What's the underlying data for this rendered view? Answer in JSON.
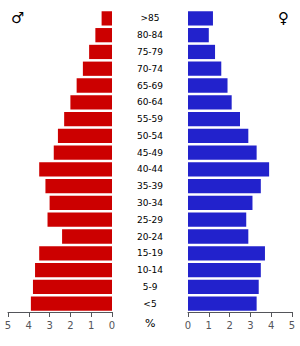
{
  "chart_data": {
    "type": "bar",
    "orientation": "horizontal",
    "categories": [
      "<5",
      "5-9",
      "10-14",
      "15-19",
      "20-24",
      "25-29",
      "30-34",
      "35-39",
      "40-44",
      "45-49",
      "50-54",
      "55-59",
      "60-64",
      "65-69",
      "70-74",
      "75-79",
      "80-84",
      ">85"
    ],
    "series": [
      {
        "name": "♂",
        "color": "#cc0000",
        "values": [
          3.9,
          3.8,
          3.7,
          3.5,
          2.4,
          3.1,
          3.0,
          3.2,
          3.5,
          2.8,
          2.6,
          2.3,
          2.0,
          1.7,
          1.4,
          1.1,
          0.8,
          0.5
        ]
      },
      {
        "name": "♀",
        "color": "#2222cc",
        "values": [
          3.3,
          3.4,
          3.5,
          3.7,
          2.9,
          2.8,
          3.1,
          3.5,
          3.9,
          3.3,
          2.9,
          2.5,
          2.1,
          1.9,
          1.6,
          1.3,
          1.0,
          1.2
        ]
      }
    ],
    "xlabel": "%",
    "xlim": [
      0,
      5
    ],
    "xticks": [
      0,
      1,
      2,
      3,
      4,
      5
    ],
    "grid": false
  }
}
